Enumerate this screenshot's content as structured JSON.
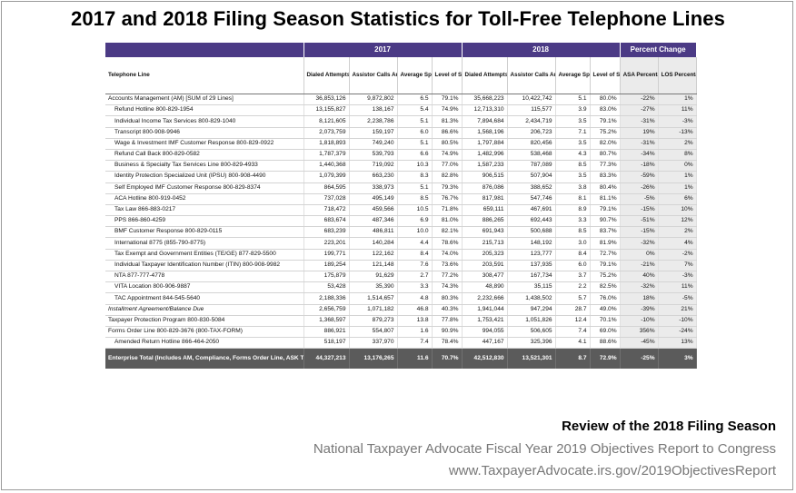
{
  "title": "2017 and 2018 Filing Season Statistics for Toll-Free Telephone Lines",
  "groups": {
    "y2017": "2017",
    "y2018": "2018",
    "pct": "Percent Change"
  },
  "headers": {
    "line": "Telephone Line",
    "dialed": "Dialed Attempts",
    "assistor": "Assistor Calls Answered",
    "asa": "Average Speed of Answer (Minutes)",
    "los": "Level of Service",
    "asa_pct": "ASA Percentage Change",
    "los_pct": "LOS Percentage Change"
  },
  "rows": [
    {
      "name": "Accounts Management (AM) [SUM of 29 Lines]",
      "v": [
        "36,853,126",
        "9,872,802",
        "6.5",
        "79.1%",
        "35,668,223",
        "10,422,742",
        "5.1",
        "80.0%",
        "-22%",
        "1%"
      ]
    },
    {
      "name": "Refund Hotline 800-829-1954",
      "v": [
        "13,155,827",
        "138,167",
        "5.4",
        "74.9%",
        "12,713,310",
        "115,577",
        "3.9",
        "83.0%",
        "-27%",
        "11%"
      ]
    },
    {
      "name": "Individual Income Tax Services 800-829-1040",
      "v": [
        "8,121,605",
        "2,238,786",
        "5.1",
        "81.3%",
        "7,894,684",
        "2,434,719",
        "3.5",
        "79.1%",
        "-31%",
        "-3%"
      ]
    },
    {
      "name": "Transcript 800-908-9946",
      "v": [
        "2,073,759",
        "159,197",
        "6.0",
        "86.6%",
        "1,568,196",
        "206,723",
        "7.1",
        "75.2%",
        "19%",
        "-13%"
      ]
    },
    {
      "name": "Wage & Investment IMF Customer Response 800-829-0922",
      "v": [
        "1,818,893",
        "749,240",
        "5.1",
        "80.5%",
        "1,797,884",
        "820,456",
        "3.5",
        "82.0%",
        "-31%",
        "2%"
      ]
    },
    {
      "name": "Refund Call Back 800-829-0582",
      "v": [
        "1,787,379",
        "539,793",
        "6.6",
        "74.9%",
        "1,482,996",
        "538,468",
        "4.3",
        "80.7%",
        "-34%",
        "8%"
      ]
    },
    {
      "name": "Business & Specialty Tax Services Line 800-829-4933",
      "v": [
        "1,440,368",
        "719,092",
        "10.3",
        "77.0%",
        "1,587,233",
        "787,089",
        "8.5",
        "77.3%",
        "-18%",
        "0%"
      ]
    },
    {
      "name": "Identity Protection Specialized Unit (IPSU) 800-908-4490",
      "v": [
        "1,079,399",
        "663,230",
        "8.3",
        "82.8%",
        "906,515",
        "507,904",
        "3.5",
        "83.3%",
        "-59%",
        "1%"
      ]
    },
    {
      "name": "Self Employed IMF Customer Response 800-829-8374",
      "v": [
        "864,595",
        "338,973",
        "5.1",
        "79.3%",
        "876,086",
        "388,652",
        "3.8",
        "80.4%",
        "-26%",
        "1%"
      ]
    },
    {
      "name": "ACA Hotline 800-919-0452",
      "v": [
        "737,028",
        "495,149",
        "8.5",
        "76.7%",
        "817,981",
        "547,746",
        "8.1",
        "81.1%",
        "-5%",
        "6%"
      ]
    },
    {
      "name": "Tax Law 866-883-0217",
      "v": [
        "718,472",
        "459,566",
        "10.5",
        "71.8%",
        "659,111",
        "467,691",
        "8.9",
        "79.1%",
        "-15%",
        "10%"
      ]
    },
    {
      "name": "PPS 866-860-4259",
      "v": [
        "683,674",
        "487,346",
        "6.9",
        "81.0%",
        "886,265",
        "692,443",
        "3.3",
        "90.7%",
        "-51%",
        "12%"
      ]
    },
    {
      "name": "BMF Customer Response 800-829-0115",
      "v": [
        "683,239",
        "486,811",
        "10.0",
        "82.1%",
        "691,943",
        "500,688",
        "8.5",
        "83.7%",
        "-15%",
        "2%"
      ]
    },
    {
      "name": "International 8775 (855-790-8775)",
      "v": [
        "223,201",
        "140,284",
        "4.4",
        "78.6%",
        "215,713",
        "148,192",
        "3.0",
        "81.9%",
        "-32%",
        "4%"
      ]
    },
    {
      "name": "Tax Exempt and Government Entities (TE/GE) 877-829-5500",
      "v": [
        "199,771",
        "122,162",
        "8.4",
        "74.0%",
        "205,323",
        "123,777",
        "8.4",
        "72.7%",
        "0%",
        "-2%"
      ]
    },
    {
      "name": "Individual Taxpayer Identification Number (ITIN) 800-908-9982",
      "v": [
        "189,254",
        "121,148",
        "7.6",
        "73.6%",
        "203,591",
        "137,935",
        "6.0",
        "79.1%",
        "-21%",
        "7%"
      ]
    },
    {
      "name": "NTA 877-777-4778",
      "v": [
        "175,879",
        "91,629",
        "2.7",
        "77.2%",
        "308,477",
        "167,734",
        "3.7",
        "75.2%",
        "40%",
        "-3%"
      ]
    },
    {
      "name": "VITA Location 800-906-9887",
      "v": [
        "53,428",
        "35,390",
        "3.3",
        "74.3%",
        "48,890",
        "35,115",
        "2.2",
        "82.5%",
        "-32%",
        "11%"
      ]
    },
    {
      "name": "TAC Appointment 844-545-5640",
      "v": [
        "2,188,336",
        "1,514,657",
        "4.8",
        "80.3%",
        "2,232,666",
        "1,438,502",
        "5.7",
        "76.0%",
        "18%",
        "-5%"
      ]
    },
    {
      "name": "Installment Agreement/Balance Due",
      "v": [
        "2,656,759",
        "1,071,182",
        "46.8",
        "40.3%",
        "1,941,044",
        "947,294",
        "28.7",
        "49.0%",
        "-39%",
        "21%"
      ]
    },
    {
      "name": "Taxpayer Protection Program 800-830-5084",
      "v": [
        "1,368,597",
        "879,273",
        "13.8",
        "77.8%",
        "1,753,421",
        "1,051,826",
        "12.4",
        "70.1%",
        "-10%",
        "-10%"
      ]
    },
    {
      "name": "Forms Order Line 800-829-3676 (800-TAX-FORM)",
      "v": [
        "886,921",
        "554,807",
        "1.6",
        "90.9%",
        "994,055",
        "506,605",
        "7.4",
        "69.0%",
        "356%",
        "-24%"
      ]
    },
    {
      "name": "Amended Return Hotline 866-464-2050",
      "v": [
        "518,197",
        "337,970",
        "7.4",
        "78.4%",
        "447,167",
        "325,396",
        "4.1",
        "88.6%",
        "-45%",
        "13%"
      ]
    }
  ],
  "total": {
    "name": "Enterprise Total (Includes AM, Compliance, Forms Order Line, ASK TAS, and EPSS)",
    "v": [
      "44,327,213",
      "13,176,265",
      "11.6",
      "70.7%",
      "42,512,830",
      "13,521,301",
      "8.7",
      "72.9%",
      "-25%",
      "3%"
    ]
  },
  "footer": {
    "line1": "Review of the 2018 Filing Season",
    "line2": "National Taxpayer Advocate Fiscal Year 2019 Objectives Report to Congress",
    "line3": "www.TaxpayerAdvocate.irs.gov/2019ObjectivesReport"
  }
}
